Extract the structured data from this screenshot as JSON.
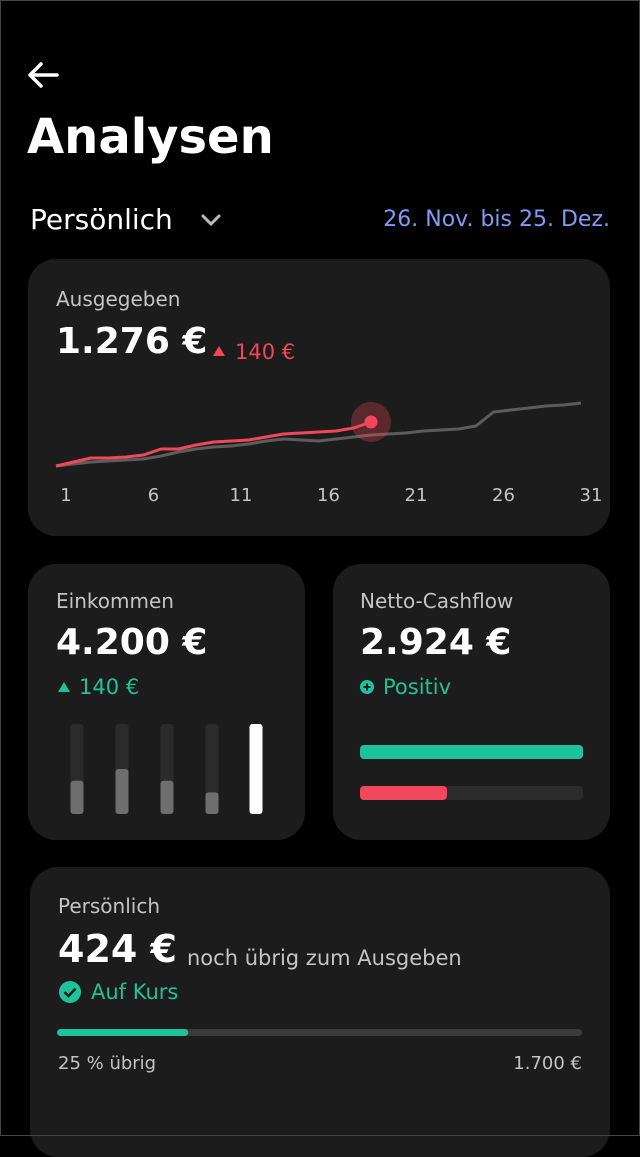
{
  "header": {
    "title": "Analysen",
    "filter": "Persönlich",
    "date_range": "26. Nov. bis 25. Dez."
  },
  "spent_card": {
    "label": "Ausgegeben",
    "amount": "1.276 €",
    "change": "140 €",
    "chart": {
      "type": "line",
      "x": [
        1,
        2,
        3,
        4,
        5,
        6,
        7,
        8,
        9,
        10,
        11,
        12,
        13,
        14,
        15,
        16,
        17,
        18,
        19,
        20,
        21,
        22,
        23,
        24,
        25,
        26,
        27,
        28,
        29,
        30,
        31
      ],
      "xlim": [
        1,
        31
      ],
      "xticks": [
        1,
        6,
        11,
        16,
        21,
        26,
        31
      ],
      "ylim": [
        0,
        2200
      ],
      "series": [
        {
          "color": "#f0475a",
          "values": [
            308,
            396,
            484,
            484,
            506,
            550,
            682,
            682,
            770,
            836,
            858,
            880,
            946,
            1012,
            1034,
            1056,
            1078,
            1144,
            1276,
            null,
            null,
            null,
            null,
            null,
            null,
            null,
            null,
            null,
            null,
            null,
            null
          ]
        },
        {
          "color": "#5c5c5c",
          "values": [
            308,
            352,
            396,
            418,
            440,
            462,
            528,
            616,
            682,
            726,
            748,
            792,
            858,
            902,
            880,
            858,
            902,
            946,
            990,
            1012,
            1034,
            1078,
            1100,
            1122,
            1188,
            1496,
            1540,
            1584,
            1628,
            1650,
            1694
          ]
        }
      ]
    }
  },
  "income_card": {
    "label": "Einkommen",
    "amount": "4.200 €",
    "change": "140 €",
    "bars": {
      "values": [
        37,
        50,
        37,
        24,
        100
      ],
      "ylim": [
        0,
        100
      ],
      "colors": [
        "#6e6e6e",
        "#6e6e6e",
        "#6e6e6e",
        "#6e6e6e",
        "#ffffff"
      ]
    }
  },
  "cashflow_card": {
    "label": "Netto-Cashflow",
    "amount": "2.924 €",
    "status": "Positiv",
    "bars": {
      "values": [
        100,
        39
      ],
      "xlim": [
        0,
        100
      ],
      "colors": [
        "#1fc39a",
        "#f0475a"
      ]
    }
  },
  "budget_card": {
    "label": "Persönlich",
    "amount": "424 €",
    "caption": "noch übrig zum Ausgeben",
    "status": "Auf Kurs",
    "progress": {
      "value": 25,
      "label": "25 % übrig"
    },
    "total": "1.700 €"
  }
}
